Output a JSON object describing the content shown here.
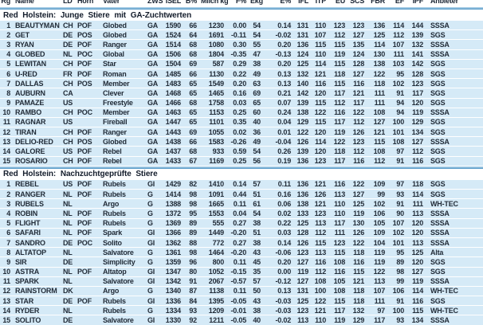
{
  "table": {
    "columns": [
      {
        "key": "rg",
        "label": "Rg"
      },
      {
        "key": "name",
        "label": "Name"
      },
      {
        "key": "ld",
        "label": "LD"
      },
      {
        "key": "horn",
        "label": "Horn"
      },
      {
        "key": "vater",
        "label": "Vater"
      },
      {
        "key": "zws",
        "label": "ZWS"
      },
      {
        "key": "isel",
        "label": "ISEL"
      },
      {
        "key": "b_pct",
        "label": "B%"
      },
      {
        "key": "milch_kg",
        "label": "Milch kg"
      },
      {
        "key": "f_pct",
        "label": "F%"
      },
      {
        "key": "ekg",
        "label": "Ekg"
      },
      {
        "key": "e_pct",
        "label": "E%"
      },
      {
        "key": "ifl",
        "label": "IFL"
      },
      {
        "key": "itp",
        "label": "ITP"
      },
      {
        "key": "eu",
        "label": "EU"
      },
      {
        "key": "scs",
        "label": "SCS"
      },
      {
        "key": "fbr",
        "label": "FBR"
      },
      {
        "key": "ef",
        "label": "EF"
      },
      {
        "key": "ipf",
        "label": "IPF"
      },
      {
        "key": "anbieter",
        "label": "Anbieter"
      }
    ],
    "sections": [
      {
        "title": "Red Holstein: Junge Stiere mit GA-Zuchtwerten",
        "rows": [
          [
            "1",
            "BEAUTYMAN",
            "CH",
            "POF",
            "Globed",
            "GA",
            "1590",
            "66",
            "1230",
            "0.00",
            "54",
            "0.14",
            "131",
            "110",
            "123",
            "123",
            "136",
            "114",
            "144",
            "SSSA"
          ],
          [
            "2",
            "GET",
            "DE",
            "POS",
            "Globed",
            "GA",
            "1524",
            "64",
            "1691",
            "-0.11",
            "54",
            "-0.02",
            "131",
            "107",
            "112",
            "127",
            "125",
            "112",
            "139",
            "SGS"
          ],
          [
            "3",
            "RYAN",
            "DE",
            "POF",
            "Ranger",
            "GA",
            "1514",
            "68",
            "1080",
            "0.30",
            "55",
            "0.20",
            "136",
            "115",
            "115",
            "135",
            "114",
            "107",
            "132",
            "SSSA"
          ],
          [
            "4",
            "GLOBED",
            "NL",
            "POC",
            "Global",
            "GA",
            "1506",
            "68",
            "1804",
            "-0.35",
            "47",
            "-0.13",
            "124",
            "110",
            "119",
            "124",
            "130",
            "111",
            "141",
            "SSSA"
          ],
          [
            "5",
            "LEWITAN",
            "CH",
            "POF",
            "Star",
            "GA",
            "1504",
            "69",
            "587",
            "0.29",
            "38",
            "0.20",
            "125",
            "114",
            "115",
            "128",
            "138",
            "103",
            "142",
            "SGS"
          ],
          [
            "6",
            "U-RED",
            "FR",
            "POF",
            "Roman",
            "GA",
            "1485",
            "66",
            "1130",
            "0.22",
            "49",
            "0.13",
            "132",
            "121",
            "118",
            "127",
            "122",
            "95",
            "128",
            "SGS"
          ],
          [
            "7",
            "DALLAS",
            "CH",
            "POS",
            "Member",
            "GA",
            "1483",
            "65",
            "1549",
            "0.20",
            "63",
            "0.13",
            "140",
            "116",
            "115",
            "116",
            "118",
            "102",
            "123",
            "SGS"
          ],
          [
            "8",
            "AUBURN",
            "CA",
            "",
            "Clever",
            "GA",
            "1468",
            "65",
            "1465",
            "0.16",
            "69",
            "0.21",
            "142",
            "120",
            "117",
            "121",
            "111",
            "91",
            "117",
            "SGS"
          ],
          [
            "9",
            "PAMAZE",
            "US",
            "",
            "Freestyle",
            "GA",
            "1466",
            "68",
            "1758",
            "0.03",
            "65",
            "0.07",
            "139",
            "115",
            "112",
            "117",
            "111",
            "94",
            "120",
            "SGS"
          ],
          [
            "10",
            "RAMBO",
            "CH",
            "POC",
            "Member",
            "GA",
            "1463",
            "65",
            "1153",
            "0.25",
            "60",
            "0.24",
            "138",
            "122",
            "116",
            "122",
            "108",
            "94",
            "119",
            "SSSA"
          ],
          [
            "11",
            "RAGNAR",
            "US",
            "",
            "Fireball",
            "GA",
            "1447",
            "65",
            "1101",
            "0.35",
            "40",
            "0.04",
            "129",
            "115",
            "117",
            "112",
            "127",
            "100",
            "129",
            "SGS"
          ],
          [
            "12",
            "TIRAN",
            "CH",
            "POF",
            "Ranger",
            "GA",
            "1443",
            "69",
            "1055",
            "0.02",
            "36",
            "0.01",
            "122",
            "120",
            "119",
            "126",
            "121",
            "101",
            "134",
            "SGS"
          ],
          [
            "13",
            "DELIO-RED",
            "CH",
            "POS",
            "Globed",
            "GA",
            "1438",
            "66",
            "1583",
            "-0.26",
            "49",
            "-0.04",
            "126",
            "114",
            "122",
            "123",
            "115",
            "108",
            "127",
            "SSSA"
          ],
          [
            "14",
            "GALORE",
            "US",
            "POF",
            "Rebel",
            "GA",
            "1437",
            "68",
            "933",
            "0.59",
            "54",
            "0.26",
            "139",
            "120",
            "118",
            "112",
            "108",
            "97",
            "112",
            "SGS"
          ],
          [
            "15",
            "ROSARIO",
            "CH",
            "POF",
            "Rebel",
            "GA",
            "1433",
            "67",
            "1169",
            "0.25",
            "56",
            "0.19",
            "136",
            "123",
            "117",
            "116",
            "112",
            "91",
            "116",
            "SGS"
          ]
        ]
      },
      {
        "title": "Red Holstein: Nachzuchtgeprüfte Stiere",
        "rows": [
          [
            "1",
            "REBEL",
            "US",
            "POF",
            "Rubels",
            "GI",
            "1429",
            "82",
            "1410",
            "0.14",
            "57",
            "0.11",
            "136",
            "121",
            "116",
            "122",
            "109",
            "97",
            "118",
            "SGS"
          ],
          [
            "2",
            "RANGER",
            "NL",
            "POF",
            "Rubels",
            "G",
            "1414",
            "98",
            "1091",
            "0.44",
            "51",
            "0.16",
            "136",
            "126",
            "113",
            "127",
            "99",
            "93",
            "114",
            "SGS"
          ],
          [
            "3",
            "RUBELS",
            "NL",
            "",
            "Argo",
            "G",
            "1388",
            "98",
            "1665",
            "0.11",
            "61",
            "0.06",
            "138",
            "121",
            "110",
            "125",
            "102",
            "91",
            "111",
            "WH-TEC"
          ],
          [
            "4",
            "ROBIN",
            "NL",
            "POF",
            "Rubels",
            "G",
            "1372",
            "95",
            "1553",
            "0.04",
            "54",
            "0.02",
            "133",
            "123",
            "110",
            "119",
            "106",
            "90",
            "113",
            "SSSA"
          ],
          [
            "5",
            "FLIGHT",
            "NL",
            "POF",
            "Rubels",
            "G",
            "1369",
            "89",
            "555",
            "0.27",
            "38",
            "0.22",
            "125",
            "113",
            "117",
            "130",
            "105",
            "107",
            "120",
            "SSSA"
          ],
          [
            "6",
            "SAFARI",
            "NL",
            "POF",
            "Spark",
            "GI",
            "1366",
            "89",
            "1449",
            "-0.20",
            "51",
            "0.03",
            "128",
            "112",
            "111",
            "126",
            "109",
            "102",
            "120",
            "SSSA"
          ],
          [
            "7",
            "SANDRO",
            "DE",
            "POC",
            "Solito",
            "GI",
            "1362",
            "88",
            "772",
            "0.27",
            "38",
            "0.14",
            "126",
            "115",
            "123",
            "122",
            "104",
            "101",
            "113",
            "SSSA"
          ],
          [
            "8",
            "ALTATOP",
            "NL",
            "",
            "Salvatore",
            "G",
            "1361",
            "98",
            "1464",
            "-0.20",
            "43",
            "-0.06",
            "123",
            "113",
            "115",
            "118",
            "119",
            "95",
            "125",
            "Alta"
          ],
          [
            "9",
            "SIR",
            "DE",
            "",
            "Simplicity",
            "G",
            "1359",
            "96",
            "800",
            "0.11",
            "45",
            "0.20",
            "127",
            "116",
            "108",
            "116",
            "119",
            "89",
            "120",
            "SGS"
          ],
          [
            "10",
            "ASTRA",
            "NL",
            "POF",
            "Altatop",
            "GI",
            "1347",
            "80",
            "1052",
            "-0.15",
            "35",
            "0.00",
            "119",
            "112",
            "116",
            "115",
            "122",
            "98",
            "127",
            "SGS"
          ],
          [
            "11",
            "SPARK",
            "NL",
            "",
            "Salvatore",
            "GI",
            "1342",
            "91",
            "2067",
            "-0.57",
            "57",
            "-0.12",
            "127",
            "108",
            "105",
            "121",
            "113",
            "99",
            "119",
            "SSSA"
          ],
          [
            "12",
            "RAINSTORM",
            "DK",
            "",
            "Argo",
            "G",
            "1340",
            "87",
            "1138",
            "0.11",
            "50",
            "0.13",
            "131",
            "100",
            "108",
            "118",
            "107",
            "106",
            "114",
            "WH-TEC"
          ],
          [
            "13",
            "STAR",
            "DE",
            "POF",
            "Rubels",
            "GI",
            "1336",
            "84",
            "1395",
            "-0.05",
            "43",
            "-0.03",
            "125",
            "122",
            "115",
            "118",
            "111",
            "91",
            "116",
            "SGS"
          ],
          [
            "14",
            "RYDER",
            "NL",
            "",
            "Rubels",
            "G",
            "1334",
            "93",
            "1209",
            "-0.01",
            "38",
            "-0.03",
            "123",
            "121",
            "117",
            "132",
            "97",
            "100",
            "115",
            "WH-TEC"
          ],
          [
            "15",
            "SOLITO",
            "DE",
            "",
            "Salvatore",
            "GI",
            "1330",
            "92",
            "1211",
            "-0.05",
            "40",
            "-0.02",
            "113",
            "110",
            "119",
            "129",
            "117",
            "93",
            "134",
            "SSSA"
          ]
        ]
      }
    ]
  },
  "colors": {
    "row_band": "#d5eaf7",
    "rule_blue": "#4e95c5",
    "text": "#222c38"
  }
}
